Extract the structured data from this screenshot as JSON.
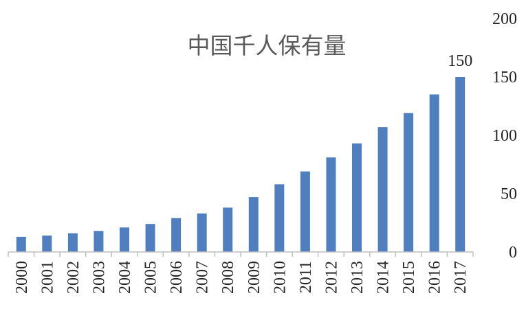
{
  "chart_data": {
    "type": "bar",
    "title": "中国千人保有量",
    "xlabel": "",
    "ylabel": "",
    "categories": [
      "2000",
      "2001",
      "2002",
      "2003",
      "2004",
      "2005",
      "2006",
      "2007",
      "2008",
      "2009",
      "2010",
      "2011",
      "2012",
      "2013",
      "2014",
      "2015",
      "2016",
      "2017"
    ],
    "values": [
      13,
      14,
      16,
      18,
      21,
      24,
      29,
      33,
      38,
      47,
      58,
      69,
      81,
      93,
      107,
      119,
      135,
      150
    ],
    "data_labels": [
      {
        "index": 17,
        "text": "150"
      }
    ],
    "ylim": [
      0,
      200
    ],
    "yticks": [
      "0",
      "50",
      "100",
      "150",
      "200"
    ],
    "y_axis_side": "right",
    "grid": false,
    "legend": "none",
    "bar_color": "#4F7FBF",
    "axis_color": "#BFBFBF"
  }
}
